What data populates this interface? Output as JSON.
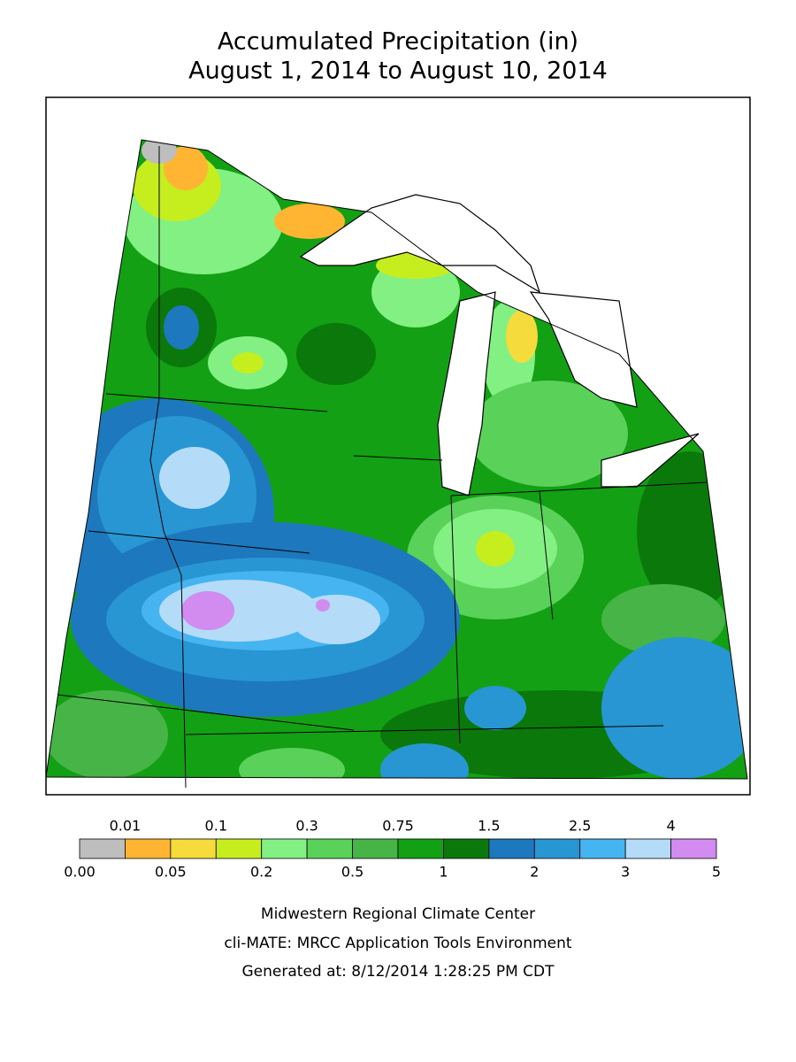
{
  "header": {
    "title": "Accumulated Precipitation (in)",
    "subtitle": "August 1, 2014 to August 10, 2014"
  },
  "legend": {
    "breaks": [
      "0.00",
      "0.01",
      "0.05",
      "0.1",
      "0.2",
      "0.3",
      "0.5",
      "0.75",
      "1",
      "1.5",
      "2",
      "2.5",
      "3",
      "4",
      "5"
    ],
    "colors": [
      "#bebebe",
      "#ffb432",
      "#f5dc3c",
      "#c6ee1e",
      "#82f082",
      "#5ad25a",
      "#46b446",
      "#14a014",
      "#0a780a",
      "#1e78be",
      "#2896d2",
      "#46b4f0",
      "#b4dcf8",
      "#d28cf0"
    ]
  },
  "footer": {
    "lines": [
      "Midwestern Regional Climate Center",
      "cli-MATE: MRCC Application Tools Environment",
      "Generated at: 8/12/2014 1:28:25 PM CDT"
    ]
  }
}
